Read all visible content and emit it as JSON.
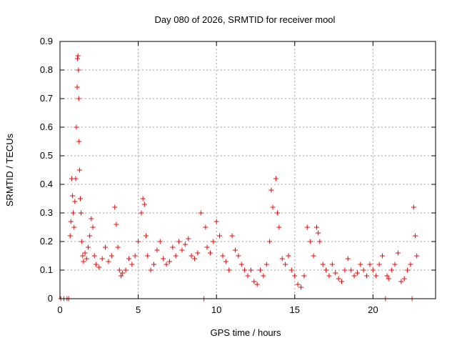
{
  "chart_data": {
    "type": "scatter",
    "title": "Day 080 of 2026, SRMTID for receiver mool",
    "xlabel": "GPS time / hours",
    "ylabel": "SRMTID / TECUs",
    "xlim": [
      0,
      24
    ],
    "ylim": [
      0,
      0.9
    ],
    "xticks": [
      0,
      5,
      10,
      15,
      20
    ],
    "xtick_labels": [
      "0",
      "5",
      "10",
      "15",
      "20"
    ],
    "yticks": [
      0,
      0.1,
      0.2,
      0.3,
      0.4,
      0.5,
      0.6,
      0.7,
      0.8,
      0.9
    ],
    "ytick_labels": [
      "0",
      "0.1",
      "0.2",
      "0.3",
      "0.4",
      "0.5",
      "0.6",
      "0.7",
      "0.8",
      "0.9"
    ],
    "grid": true,
    "marker": "+",
    "color": "#ff0000",
    "series": [
      {
        "name": "SRMTID",
        "x": [
          0.05,
          0.25,
          0.45,
          0.55,
          0.65,
          0.7,
          0.75,
          0.8,
          0.85,
          0.9,
          0.95,
          1.0,
          1.05,
          1.1,
          1.12,
          1.15,
          1.18,
          1.2,
          1.22,
          1.25,
          1.3,
          1.35,
          1.4,
          1.45,
          1.5,
          1.6,
          1.7,
          1.8,
          1.9,
          2.0,
          2.1,
          2.2,
          2.3,
          2.5,
          2.7,
          2.9,
          3.1,
          3.3,
          3.5,
          3.6,
          3.7,
          3.8,
          3.9,
          4.0,
          4.2,
          4.4,
          4.6,
          4.8,
          5.0,
          5.2,
          5.3,
          5.4,
          5.5,
          5.6,
          5.8,
          6.0,
          6.2,
          6.4,
          6.6,
          6.8,
          7.0,
          7.2,
          7.4,
          7.6,
          7.8,
          8.0,
          8.2,
          8.4,
          8.6,
          8.8,
          9.0,
          9.2,
          9.3,
          9.4,
          9.6,
          9.8,
          10.0,
          10.2,
          10.4,
          10.6,
          10.8,
          11.0,
          11.2,
          11.4,
          11.6,
          11.8,
          12.0,
          12.2,
          12.4,
          12.6,
          12.8,
          13.0,
          13.2,
          13.4,
          13.5,
          13.6,
          13.8,
          13.9,
          14.0,
          14.2,
          14.4,
          14.6,
          14.8,
          15.0,
          15.2,
          15.4,
          15.6,
          15.8,
          16.0,
          16.2,
          16.4,
          16.5,
          16.6,
          16.8,
          17.0,
          17.2,
          17.4,
          17.6,
          17.8,
          18.0,
          18.2,
          18.4,
          18.6,
          18.8,
          19.0,
          19.2,
          19.4,
          19.6,
          19.8,
          20.0,
          20.2,
          20.4,
          20.6,
          20.8,
          20.9,
          21.0,
          21.2,
          21.4,
          21.6,
          21.8,
          22.0,
          22.2,
          22.4,
          22.5,
          22.6,
          22.7,
          22.8
        ],
        "values": [
          0.0,
          0.0,
          0.0,
          0.0,
          0.22,
          0.27,
          0.42,
          0.36,
          0.3,
          0.25,
          0.34,
          0.42,
          0.6,
          0.74,
          0.84,
          0.85,
          0.8,
          0.7,
          0.55,
          0.45,
          0.35,
          0.3,
          0.2,
          0.15,
          0.13,
          0.16,
          0.14,
          0.18,
          0.22,
          0.28,
          0.25,
          0.15,
          0.12,
          0.11,
          0.14,
          0.18,
          0.13,
          0.15,
          0.32,
          0.26,
          0.18,
          0.1,
          0.08,
          0.09,
          0.1,
          0.14,
          0.12,
          0.15,
          0.2,
          0.3,
          0.35,
          0.33,
          0.22,
          0.15,
          0.1,
          0.12,
          0.17,
          0.2,
          0.14,
          0.12,
          0.13,
          0.18,
          0.15,
          0.2,
          0.17,
          0.19,
          0.21,
          0.15,
          0.14,
          0.16,
          0.3,
          0.0,
          0.25,
          0.18,
          0.16,
          0.2,
          0.27,
          0.22,
          0.15,
          0.13,
          0.1,
          0.22,
          0.17,
          0.15,
          0.12,
          0.1,
          0.08,
          0.1,
          0.06,
          0.05,
          0.1,
          0.08,
          0.12,
          0.2,
          0.38,
          0.32,
          0.42,
          0.3,
          0.25,
          0.14,
          0.12,
          0.15,
          0.1,
          0.08,
          0.05,
          0.04,
          0.08,
          0.25,
          0.2,
          0.15,
          0.25,
          0.23,
          0.2,
          0.12,
          0.1,
          0.08,
          0.12,
          0.09,
          0.07,
          0.06,
          0.1,
          0.14,
          0.1,
          0.08,
          0.09,
          0.12,
          0.1,
          0.08,
          0.12,
          0.1,
          0.08,
          0.12,
          0.15,
          0.0,
          0.08,
          0.07,
          0.1,
          0.12,
          0.16,
          0.06,
          0.07,
          0.1,
          0.12,
          0.0,
          0.32,
          0.22,
          0.15
        ]
      }
    ]
  }
}
